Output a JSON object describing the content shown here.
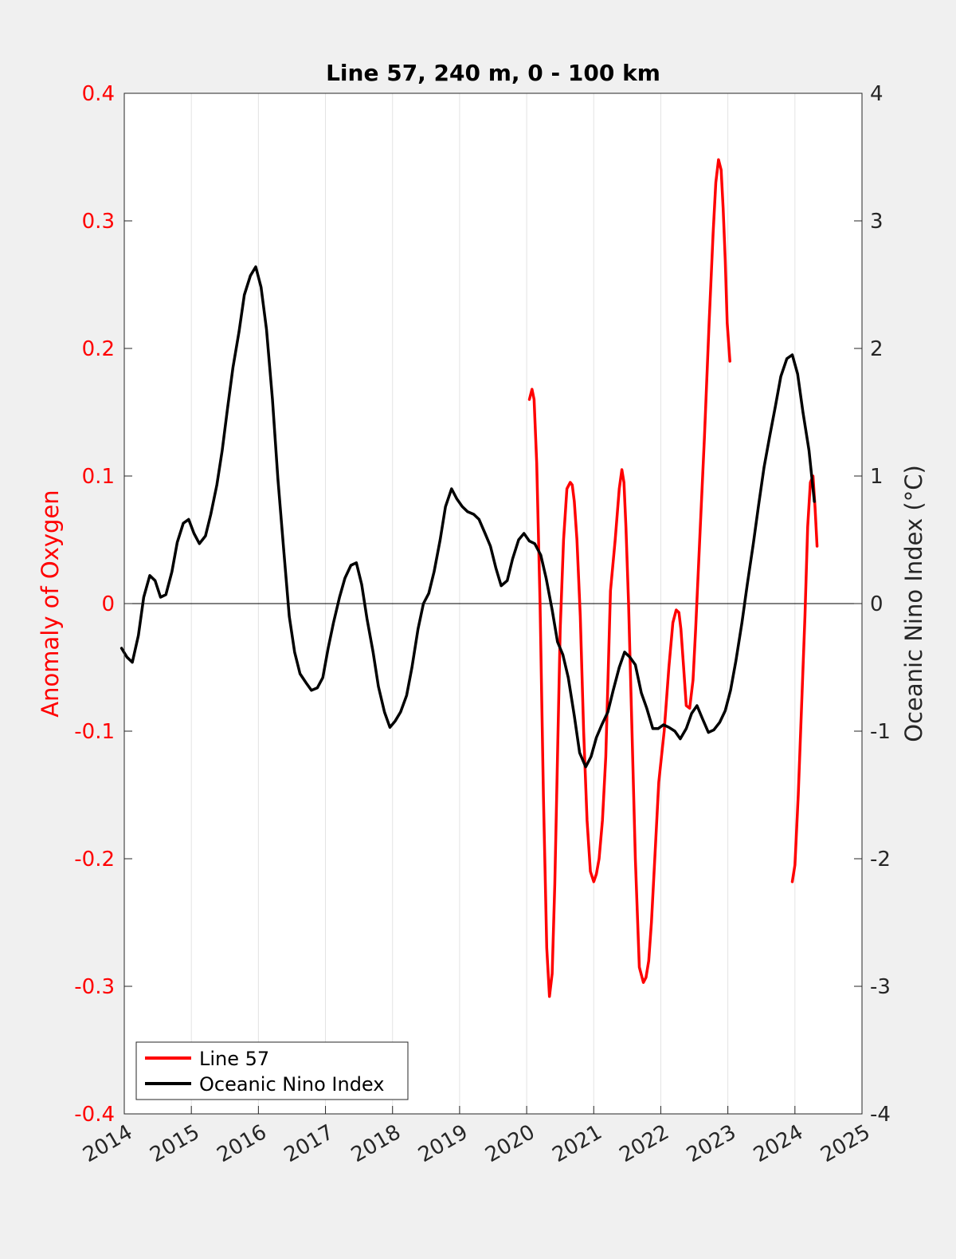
{
  "chart_data": {
    "type": "line",
    "title": "Line 57, 240 m, 0 - 100 km",
    "xlabel": "",
    "ylabel_left": "Anomaly of Oxygen",
    "ylabel_right": "Oceanic Nino Index (°C)",
    "xlim": [
      2014,
      2025
    ],
    "ylim_left": [
      -0.4,
      0.4
    ],
    "ylim_right": [
      -4,
      4
    ],
    "x_ticks": [
      "2014",
      "2015",
      "2016",
      "2017",
      "2018",
      "2019",
      "2020",
      "2021",
      "2022",
      "2023",
      "2024",
      "2025"
    ],
    "y_ticks_left": [
      "-0.4",
      "-0.3",
      "-0.2",
      "-0.1",
      "0",
      "0.1",
      "0.2",
      "0.3",
      "0.4"
    ],
    "y_ticks_right": [
      "-4",
      "-3",
      "-2",
      "-1",
      "0",
      "1",
      "2",
      "3",
      "4"
    ],
    "grid": "vertical",
    "legend_position": "bottom-left",
    "colors": {
      "line57": "#ff0000",
      "oni": "#000000",
      "left_axis": "#ff0000"
    },
    "series": [
      {
        "name": "Line 57",
        "axis": "left",
        "x": [
          2020.04,
          2020.08,
          2020.11,
          2020.15,
          2020.2,
          2020.25,
          2020.3,
          2020.34,
          2020.38,
          2020.42,
          2020.46,
          2020.5,
          2020.55,
          2020.6,
          2020.65,
          2020.68,
          2020.71,
          2020.75,
          2020.8,
          2020.85,
          2020.9,
          2020.95,
          2021.0,
          2021.04,
          2021.08,
          2021.13,
          2021.18,
          2021.25,
          2021.32,
          2021.38,
          2021.42,
          2021.45,
          2021.48,
          2021.52,
          2021.57,
          2021.62,
          2021.68,
          2021.74,
          2021.78,
          2021.82,
          2021.86,
          2021.91,
          2021.97,
          2022.05,
          2022.12,
          2022.18,
          2022.23,
          2022.27,
          2022.3,
          2022.34,
          2022.38,
          2022.43,
          2022.48,
          2022.52,
          2022.58,
          2022.65,
          2022.72,
          2022.78,
          2022.82,
          2022.86,
          2022.9,
          2022.93,
          2022.96,
          2022.99,
          2023.03
        ],
        "y": [
          0.16,
          0.168,
          0.16,
          0.11,
          0.0,
          -0.15,
          -0.27,
          -0.308,
          -0.29,
          -0.22,
          -0.12,
          -0.02,
          0.05,
          0.09,
          0.095,
          0.093,
          0.08,
          0.05,
          -0.01,
          -0.1,
          -0.17,
          -0.21,
          -0.218,
          -0.212,
          -0.2,
          -0.17,
          -0.12,
          0.01,
          0.05,
          0.09,
          0.105,
          0.095,
          0.06,
          0.0,
          -0.1,
          -0.2,
          -0.285,
          -0.297,
          -0.293,
          -0.28,
          -0.25,
          -0.2,
          -0.14,
          -0.1,
          -0.05,
          -0.015,
          -0.005,
          -0.007,
          -0.02,
          -0.05,
          -0.08,
          -0.082,
          -0.06,
          -0.02,
          0.05,
          0.13,
          0.22,
          0.29,
          0.33,
          0.348,
          0.34,
          0.31,
          0.27,
          0.22,
          0.19
        ]
      },
      {
        "name": "Line 57",
        "axis": "left",
        "legend": false,
        "x": [
          2023.96,
          2024.0,
          2024.05,
          2024.1,
          2024.15,
          2024.19,
          2024.23,
          2024.27,
          2024.3,
          2024.33
        ],
        "y": [
          -0.218,
          -0.205,
          -0.15,
          -0.08,
          -0.01,
          0.06,
          0.095,
          0.1,
          0.075,
          0.045
        ]
      },
      {
        "name": "Oceanic Nino Index",
        "axis": "right",
        "x": [
          2013.96,
          2014.04,
          2014.12,
          2014.21,
          2014.29,
          2014.38,
          2014.46,
          2014.54,
          2014.62,
          2014.71,
          2014.79,
          2014.88,
          2014.96,
          2015.04,
          2015.12,
          2015.21,
          2015.29,
          2015.38,
          2015.46,
          2015.54,
          2015.62,
          2015.71,
          2015.79,
          2015.88,
          2015.96,
          2016.04,
          2016.12,
          2016.21,
          2016.29,
          2016.38,
          2016.46,
          2016.54,
          2016.62,
          2016.71,
          2016.79,
          2016.88,
          2016.96,
          2017.04,
          2017.12,
          2017.21,
          2017.29,
          2017.38,
          2017.46,
          2017.54,
          2017.62,
          2017.71,
          2017.79,
          2017.88,
          2017.96,
          2018.04,
          2018.12,
          2018.21,
          2018.29,
          2018.38,
          2018.46,
          2018.54,
          2018.62,
          2018.71,
          2018.79,
          2018.88,
          2018.96,
          2019.04,
          2019.12,
          2019.21,
          2019.29,
          2019.38,
          2019.46,
          2019.54,
          2019.62,
          2019.71,
          2019.79,
          2019.88,
          2019.96,
          2020.04,
          2020.12,
          2020.21,
          2020.29,
          2020.38,
          2020.46,
          2020.54,
          2020.62,
          2020.71,
          2020.79,
          2020.88,
          2020.96,
          2021.04,
          2021.12,
          2021.21,
          2021.29,
          2021.38,
          2021.46,
          2021.54,
          2021.62,
          2021.71,
          2021.79,
          2021.88,
          2021.96,
          2022.04,
          2022.12,
          2022.21,
          2022.29,
          2022.38,
          2022.46,
          2022.54,
          2022.62,
          2022.71,
          2022.79,
          2022.88,
          2022.96,
          2023.04,
          2023.12,
          2023.21,
          2023.29,
          2023.38,
          2023.46,
          2023.54,
          2023.62,
          2023.71,
          2023.79,
          2023.88,
          2023.96,
          2024.04,
          2024.12,
          2024.21,
          2024.29
        ],
        "y": [
          -0.35,
          -0.42,
          -0.46,
          -0.25,
          0.05,
          0.22,
          0.18,
          0.05,
          0.07,
          0.25,
          0.48,
          0.63,
          0.66,
          0.55,
          0.47,
          0.53,
          0.7,
          0.93,
          1.2,
          1.53,
          1.85,
          2.13,
          2.42,
          2.57,
          2.64,
          2.48,
          2.15,
          1.6,
          0.98,
          0.4,
          -0.1,
          -0.38,
          -0.55,
          -0.62,
          -0.68,
          -0.66,
          -0.58,
          -0.35,
          -0.15,
          0.05,
          0.2,
          0.3,
          0.32,
          0.15,
          -0.12,
          -0.38,
          -0.65,
          -0.85,
          -0.97,
          -0.92,
          -0.85,
          -0.72,
          -0.5,
          -0.2,
          0.0,
          0.08,
          0.25,
          0.5,
          0.76,
          0.9,
          0.82,
          0.76,
          0.72,
          0.7,
          0.66,
          0.55,
          0.45,
          0.28,
          0.14,
          0.18,
          0.35,
          0.5,
          0.55,
          0.49,
          0.47,
          0.38,
          0.2,
          -0.05,
          -0.3,
          -0.4,
          -0.58,
          -0.88,
          -1.17,
          -1.28,
          -1.2,
          -1.05,
          -0.95,
          -0.85,
          -0.68,
          -0.5,
          -0.38,
          -0.42,
          -0.48,
          -0.7,
          -0.82,
          -0.98,
          -0.98,
          -0.95,
          -0.97,
          -1.0,
          -1.06,
          -0.98,
          -0.86,
          -0.8,
          -0.9,
          -1.01,
          -0.99,
          -0.93,
          -0.84,
          -0.68,
          -0.45,
          -0.15,
          0.15,
          0.47,
          0.78,
          1.07,
          1.3,
          1.55,
          1.78,
          1.92,
          1.95,
          1.8,
          1.5,
          1.2,
          0.8
        ]
      }
    ]
  }
}
